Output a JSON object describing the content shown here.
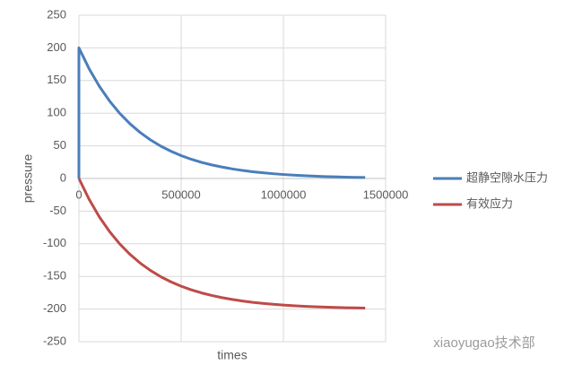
{
  "chart_data": {
    "type": "line",
    "x_label": "times",
    "y_label": "pressure",
    "x": [
      0,
      0,
      50000,
      100000,
      150000,
      200000,
      250000,
      300000,
      350000,
      400000,
      450000,
      500000,
      550000,
      600000,
      650000,
      700000,
      750000,
      800000,
      850000,
      900000,
      950000,
      1000000,
      1050000,
      1100000,
      1150000,
      1200000,
      1250000,
      1300000,
      1350000,
      1400000
    ],
    "series": [
      {
        "name": "超静空隙水压力",
        "color": "#4a7ebb",
        "values": [
          0,
          200,
          168.0,
          141.1,
          118.6,
          99.6,
          83.7,
          70.3,
          59.1,
          49.6,
          41.7,
          35.0,
          29.4,
          24.7,
          20.8,
          17.5,
          14.7,
          12.3,
          10.3,
          8.7,
          7.3,
          6.1,
          5.1,
          4.3,
          3.6,
          3.0,
          2.6,
          2.1,
          1.8,
          1.5
        ]
      },
      {
        "name": "有效应力",
        "color": "#be4b48",
        "values": [
          0,
          0,
          -32.0,
          -58.9,
          -81.4,
          -100.4,
          -116.3,
          -129.7,
          -140.9,
          -150.4,
          -158.3,
          -165.0,
          -170.6,
          -175.3,
          -179.2,
          -182.5,
          -185.3,
          -187.7,
          -189.7,
          -191.3,
          -192.7,
          -193.9,
          -194.9,
          -195.7,
          -196.4,
          -197.0,
          -197.4,
          -197.9,
          -198.2,
          -198.5
        ]
      }
    ],
    "xlim": [
      0,
      1500000
    ],
    "xticks": [
      0,
      500000,
      1000000,
      1500000
    ],
    "ylim": [
      -250,
      250
    ],
    "yticks": [
      -250,
      -200,
      -150,
      -100,
      -50,
      0,
      50,
      100,
      150,
      200,
      250
    ],
    "grid": true,
    "legend": "right",
    "watermark": "xiaoyugao技术部"
  }
}
